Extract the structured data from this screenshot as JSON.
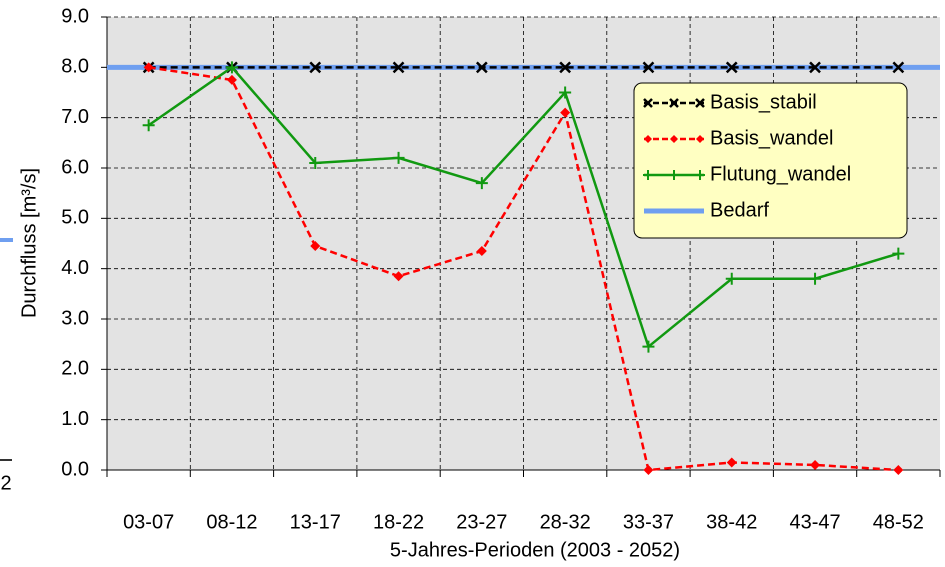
{
  "chart_data": {
    "type": "line",
    "x_label": "5-Jahres-Perioden (2003 - 2052)",
    "y_label": "Durchfluss [m³/s]",
    "categories": [
      "03-07",
      "08-12",
      "13-17",
      "18-22",
      "23-27",
      "28-32",
      "33-37",
      "38-42",
      "43-47",
      "48-52"
    ],
    "series": [
      {
        "name": "Basis_stabil",
        "color": "#000000",
        "marker": "x",
        "dash": true,
        "values": [
          8.0,
          8.0,
          8.0,
          8.0,
          8.0,
          8.0,
          8.0,
          8.0,
          8.0,
          8.0
        ]
      },
      {
        "name": "Basis_wandel",
        "color": "#ff0000",
        "marker": "diamond",
        "dash": true,
        "values": [
          8.0,
          7.75,
          4.45,
          3.85,
          4.35,
          7.1,
          0.0,
          0.15,
          0.1,
          0.0
        ]
      },
      {
        "name": "Flutung_wandel",
        "color": "#119911",
        "marker": "plus",
        "dash": false,
        "values": [
          6.85,
          8.0,
          6.1,
          6.2,
          5.7,
          7.5,
          2.45,
          3.8,
          3.8,
          4.3
        ]
      },
      {
        "name": "Bedarf",
        "color": "#6f9ff0",
        "marker": "none",
        "dash": false,
        "values": [
          8.0,
          8.0,
          8.0,
          8.0,
          8.0,
          8.0,
          8.0,
          8.0,
          8.0,
          8.0
        ]
      }
    ],
    "ylim": [
      0,
      9
    ],
    "yticks": [
      {
        "value": 0,
        "label": "0.0"
      },
      {
        "value": 1,
        "label": "1.0"
      },
      {
        "value": 2,
        "label": "2.0"
      },
      {
        "value": 3,
        "label": "3.0"
      },
      {
        "value": 4,
        "label": "4.0"
      },
      {
        "value": 5,
        "label": "5.0"
      },
      {
        "value": 6,
        "label": "6.0"
      },
      {
        "value": 7,
        "label": "7.0"
      },
      {
        "value": 8,
        "label": "8.0"
      },
      {
        "value": 9,
        "label": "9.0"
      }
    ],
    "grid": true,
    "legend": "upper right",
    "fragment_label": "2"
  }
}
